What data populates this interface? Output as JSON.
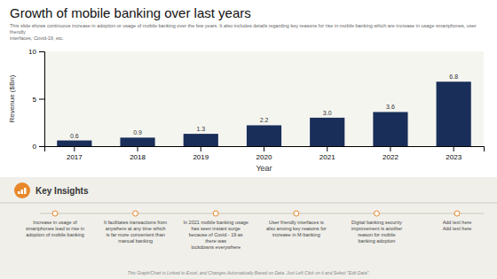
{
  "chart_data": {
    "type": "bar",
    "title": "Growth of mobile banking over last years",
    "subtitle": "This slide shows continuous increase in adoption or usage of mobile banking over the few years. It also includes details regarding key reasons for rise in mobile banking which are increase in usage smartphones, user friendly\ninterfaces, Covid-19, etc.",
    "categories": [
      "2017",
      "2018",
      "2019",
      "2020",
      "2021",
      "2022",
      "2023"
    ],
    "values": [
      0.6,
      0.9,
      1.3,
      2.2,
      3.0,
      3.6,
      6.8
    ],
    "value_labels": [
      "0.6",
      "0.9",
      "1.3",
      "2.2",
      "3.0",
      "3.6",
      "6.8"
    ],
    "data_labels": true,
    "color": "#1a2e5a",
    "xlabel": "Year",
    "ylabel": "Revenue ($Bn)",
    "ylim": [
      0,
      10
    ],
    "yticks": [
      0,
      5,
      10
    ],
    "grid": false,
    "annotations": {
      "heading": "Key Insights",
      "insights": [
        "Increase in usage of\nsmartphones lead to rise in\nadoption of mobile banking",
        "It facilitates transactions from\nanywhere at any time which\nis far more convenient than\nmanual banking",
        "In 2021 mobile banking usage\nhas seen instant surge\nbecause of Covid - 19 as\nthere was\nlockdowns everywhere",
        "User friendly interfaces is\nalso among key reasons for\nincrease in M-banking",
        "Digital banking security\nimprovement is another\nreason for mobile\nbanking adoption",
        "Add text here\nAdd text here"
      ],
      "footer": "This Graph/Chart is Linked to Excel, and Changes Automatically Based on Data. Just Left Click on it and Select \"Edit Data\"."
    }
  }
}
